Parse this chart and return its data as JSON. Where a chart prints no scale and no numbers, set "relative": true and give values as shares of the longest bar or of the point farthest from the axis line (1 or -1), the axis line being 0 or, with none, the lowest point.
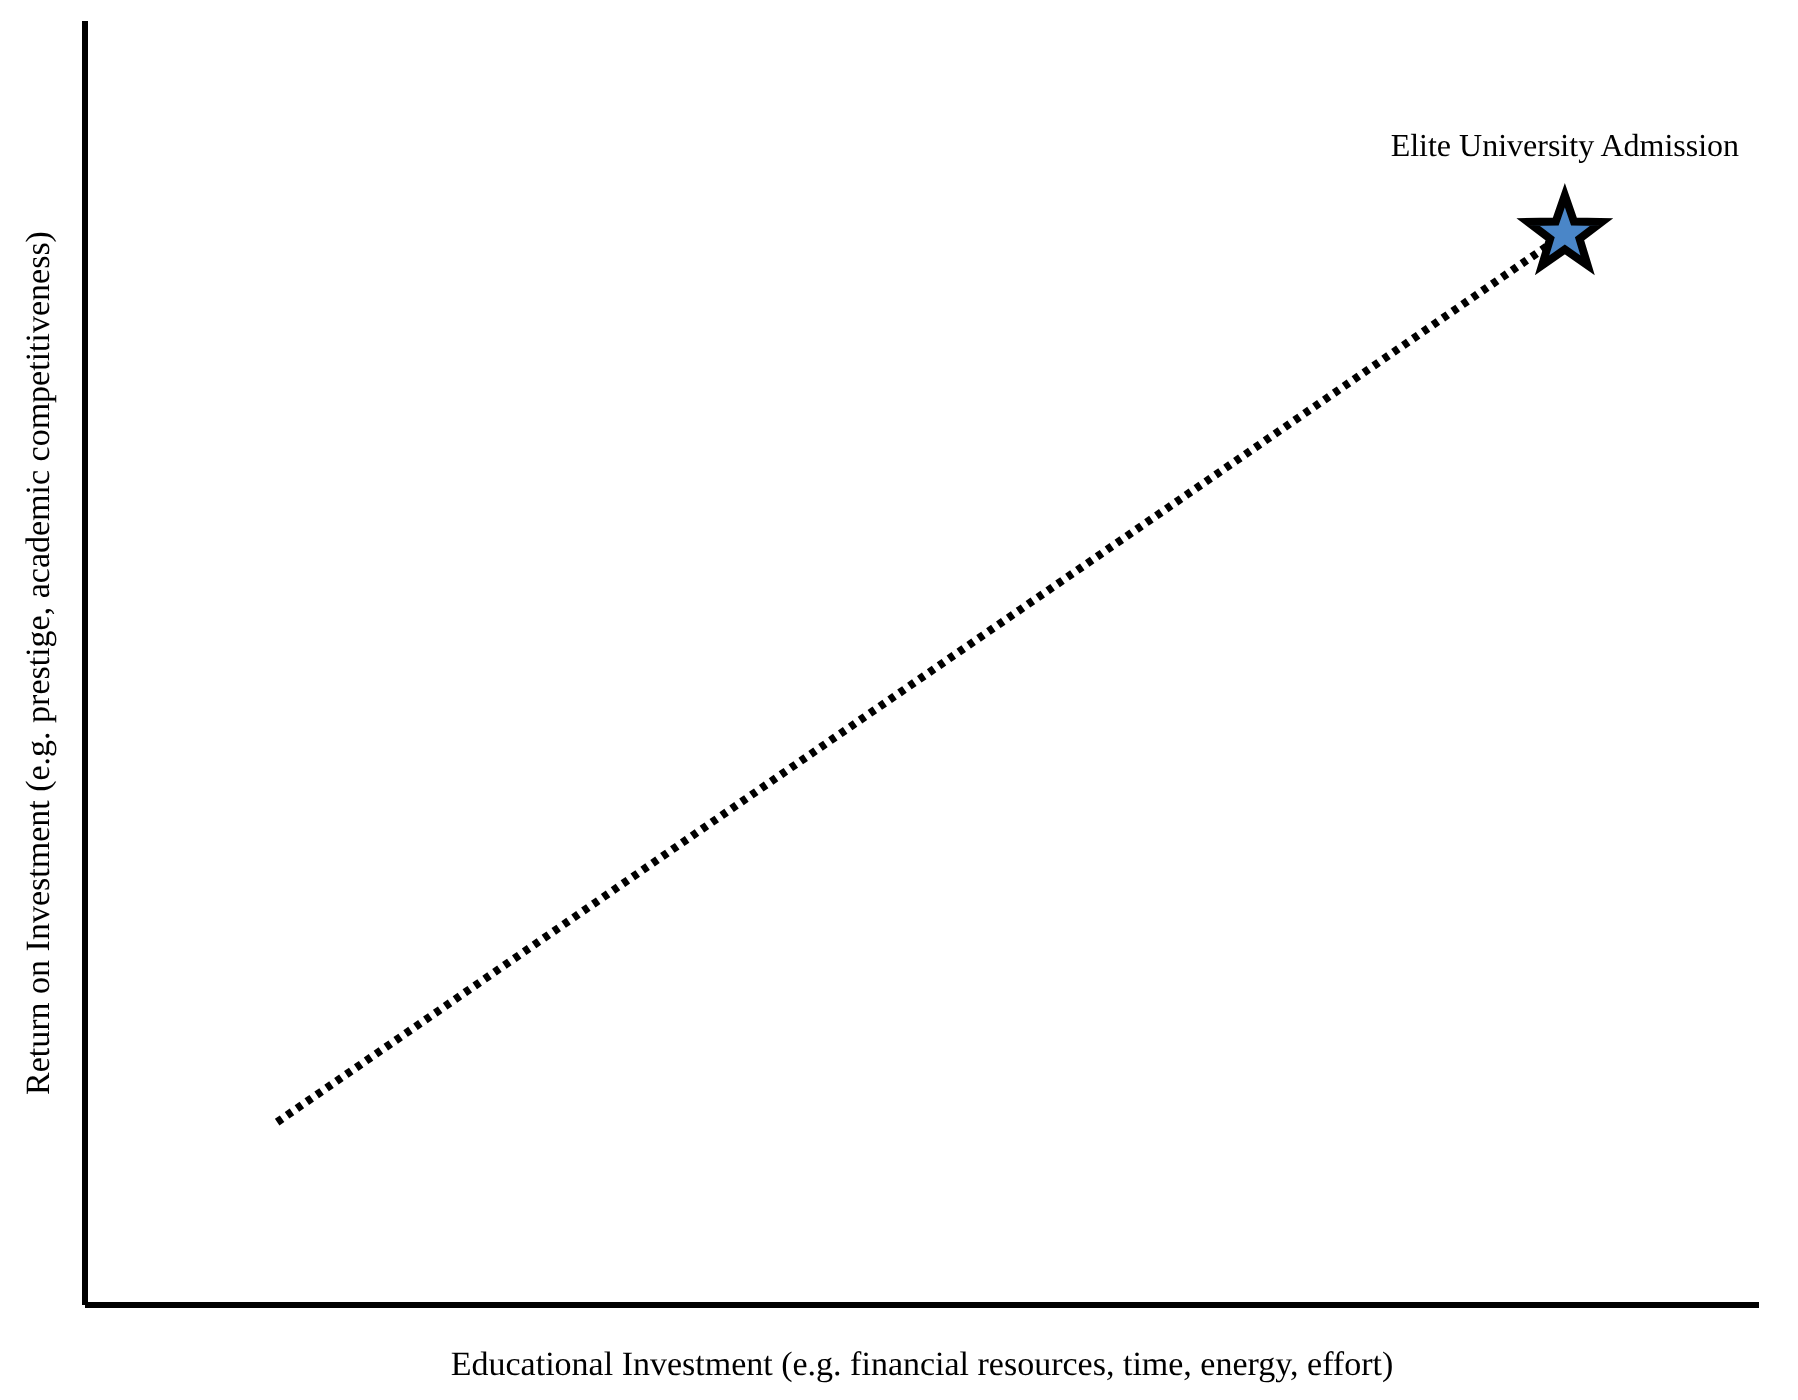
{
  "chart_data": {
    "type": "line",
    "relative": true,
    "xlabel": "Educational Investment (e.g. financial resources, time, energy, effort)",
    "ylabel": "Return on Investment (e.g. prestige, academic competitiveness)",
    "categories": [
      null,
      null
    ],
    "annotations": [
      "Elite University Admission"
    ],
    "series": [
      {
        "line_style": "dotted",
        "color": "#000000",
        "values": [
          0.17,
          1
        ]
      }
    ]
  }
}
